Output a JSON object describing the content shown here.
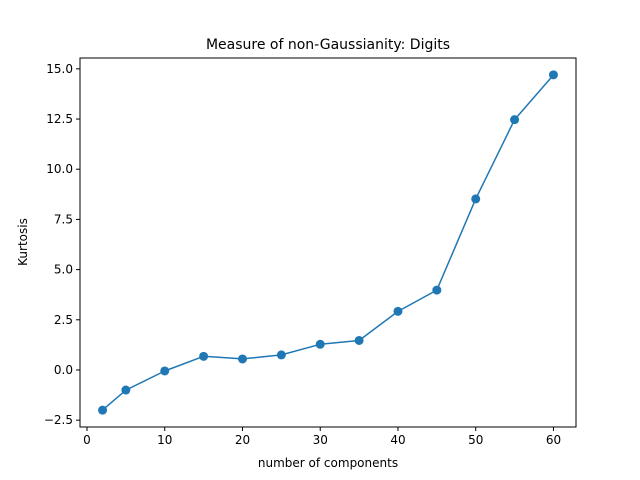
{
  "chart_data": {
    "type": "line",
    "title": "Measure of non-Gaussianity: Digits",
    "xlabel": "number of components",
    "ylabel": "Kurtosis",
    "x": [
      2,
      5,
      10,
      15,
      20,
      25,
      30,
      35,
      40,
      45,
      50,
      55,
      60
    ],
    "series": [
      {
        "values": [
          -2.0,
          -1.0,
          -0.05,
          0.68,
          0.55,
          0.75,
          1.28,
          1.47,
          2.92,
          3.98,
          8.52,
          12.47,
          14.7
        ],
        "color": "#1f77b4",
        "marker": "circle"
      }
    ],
    "xlim": [
      -0.9,
      62.9
    ],
    "ylim": [
      -2.84,
      15.54
    ],
    "xticks": [
      0,
      10,
      20,
      30,
      40,
      50,
      60
    ],
    "xtick_labels": [
      "0",
      "10",
      "20",
      "30",
      "40",
      "50",
      "60"
    ],
    "yticks": [
      -2.5,
      0.0,
      2.5,
      5.0,
      7.5,
      10.0,
      12.5,
      15.0
    ],
    "ytick_labels": [
      "−2.5",
      "0.0",
      "2.5",
      "5.0",
      "7.5",
      "10.0",
      "12.5",
      "15.0"
    ],
    "grid": false,
    "legend": "none"
  }
}
